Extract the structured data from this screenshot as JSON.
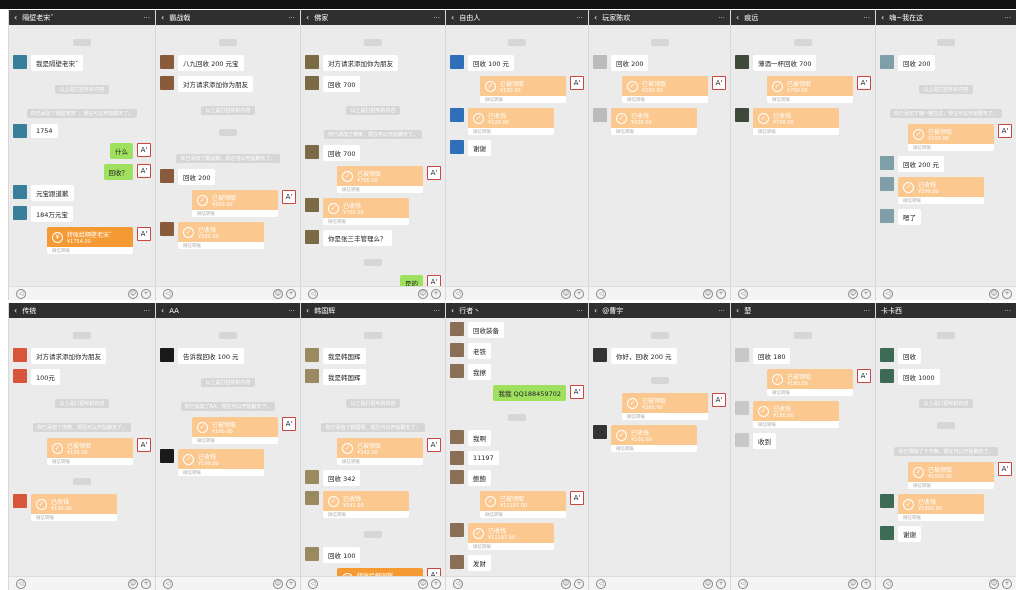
{
  "common": {
    "back_icon": "‹",
    "more": "···",
    "received_label": "已收钱",
    "claimed_label": "已被领取",
    "footer_label": "微信转账",
    "self_avatar": "A'"
  },
  "colors": {
    "header": "#2f2f2f",
    "bubble_out": "#9fe05f",
    "transfer_done": "#fbc88f",
    "transfer_pending": "#f59a32"
  },
  "panels": [
    {
      "title": "隔壁老宋ˇ",
      "avatar_color": "#3a7f9a",
      "messages": [
        {
          "type": "time"
        },
        {
          "type": "in",
          "text": "我是隔壁老宋ˇ"
        },
        {
          "type": "sys",
          "text": "以上是打招呼的内容"
        },
        {
          "type": "sys",
          "text": "你已添加了隔壁老宋ˇ，现在可以开始聊天了。"
        },
        {
          "type": "in",
          "text": "1754"
        },
        {
          "type": "out",
          "text": "什么"
        },
        {
          "type": "out",
          "text": "回收？"
        },
        {
          "type": "in",
          "text": "元宝跟道歉"
        },
        {
          "type": "in",
          "text": "184万元宝"
        },
        {
          "type": "out-pending",
          "label": "转账给隔壁老宋ˇ",
          "amount": "¥1754.00"
        }
      ]
    },
    {
      "title": "霸战戟",
      "avatar_color": "#8a5a3c",
      "messages": [
        {
          "type": "time"
        },
        {
          "type": "in",
          "text": "八九回收 200 元宝"
        },
        {
          "type": "in",
          "text": "对方请求添加你为朋友"
        },
        {
          "type": "sys",
          "text": "以上是打招呼的内容"
        },
        {
          "type": "time"
        },
        {
          "type": "sys",
          "text": "你已添加了霸战戟，现在可以开始聊天了。"
        },
        {
          "type": "in",
          "text": "回收 200"
        },
        {
          "type": "out-done",
          "amount": "¥200.00"
        },
        {
          "type": "in-done",
          "amount": "¥200.00"
        }
      ]
    },
    {
      "title": "佛家",
      "avatar_color": "#7a6a45",
      "messages": [
        {
          "type": "time"
        },
        {
          "type": "in",
          "text": "对方请求添加你为朋友"
        },
        {
          "type": "in",
          "text": "回收 700"
        },
        {
          "type": "sys",
          "text": "以上是打招呼的内容"
        },
        {
          "type": "sys",
          "text": "你已添加了佛家，现在可以开始聊天了。"
        },
        {
          "type": "in",
          "text": "回收 700"
        },
        {
          "type": "out-done",
          "amount": "¥700.00"
        },
        {
          "type": "in-done",
          "amount": "¥700.00"
        },
        {
          "type": "in",
          "text": "你是张三丰管理么？"
        },
        {
          "type": "time"
        },
        {
          "type": "out",
          "text": "是的"
        }
      ]
    },
    {
      "title": "自由人",
      "avatar_color": "#2f6fb8",
      "messages": [
        {
          "type": "time"
        },
        {
          "type": "in",
          "text": "回收 100 元"
        },
        {
          "type": "out-done",
          "amount": "¥100.00"
        },
        {
          "type": "in-done",
          "amount": "¥100.00"
        },
        {
          "type": "in",
          "text": "谢谢"
        }
      ]
    },
    {
      "title": "玩家陈欢",
      "avatar_color": "#bbbbbb",
      "messages": [
        {
          "type": "time"
        },
        {
          "type": "in",
          "text": "回收 200"
        },
        {
          "type": "out-done",
          "amount": "¥200.00"
        },
        {
          "type": "in-done",
          "amount": "¥200.00"
        }
      ]
    },
    {
      "title": "痕远",
      "avatar_color": "#3d4a3a",
      "messages": [
        {
          "type": "time"
        },
        {
          "type": "in",
          "text": "薄酒一杯回收 700"
        },
        {
          "type": "out-done",
          "amount": "¥700.00"
        },
        {
          "type": "in-done",
          "amount": "¥700.00"
        }
      ]
    },
    {
      "title": "嗨~我在这",
      "avatar_color": "#7f9fa8",
      "messages": [
        {
          "type": "time"
        },
        {
          "type": "in",
          "text": "回收 200"
        },
        {
          "type": "sys",
          "text": "以上是打招呼的内容"
        },
        {
          "type": "sys",
          "text": "你已添加了嗨~我在这，现在可以开始聊天了。"
        },
        {
          "type": "out-done",
          "amount": "¥200.00"
        },
        {
          "type": "in",
          "text": "回收 200 元"
        },
        {
          "type": "in-done",
          "amount": "¥200.00"
        },
        {
          "type": "in",
          "text": "嗯了"
        }
      ]
    },
    {
      "title": "传统",
      "avatar_color": "#d9553a",
      "messages": [
        {
          "type": "time"
        },
        {
          "type": "in",
          "text": "对方请求添加你为朋友"
        },
        {
          "type": "in",
          "text": "100元"
        },
        {
          "type": "sys",
          "text": "以上是打招呼的内容"
        },
        {
          "type": "sys",
          "text": "你已添加了传统，现在可以开始聊天了。"
        },
        {
          "type": "out-done",
          "amount": "¥100.00"
        },
        {
          "type": "time"
        },
        {
          "type": "in-done",
          "amount": "¥100.00"
        }
      ]
    },
    {
      "title": "AA",
      "avatar_color": "#1a1a1a",
      "messages": [
        {
          "type": "time"
        },
        {
          "type": "in",
          "text": "告诉我回收 100 元"
        },
        {
          "type": "sys",
          "text": "以上是打招呼的内容"
        },
        {
          "type": "sys",
          "text": "你已添加了AA，现在可以开始聊天了。"
        },
        {
          "type": "out-done",
          "amount": "¥100.00"
        },
        {
          "type": "in-done",
          "amount": "¥100.00"
        }
      ]
    },
    {
      "title": "韩国辉",
      "avatar_color": "#9a8a60",
      "messages": [
        {
          "type": "time"
        },
        {
          "type": "in",
          "text": "我是韩国辉"
        },
        {
          "type": "in",
          "text": "我是韩国辉"
        },
        {
          "type": "sys",
          "text": "以上是打招呼的内容"
        },
        {
          "type": "sys",
          "text": "你已添加了韩国辉，现在可以开始聊天了。"
        },
        {
          "type": "out-done",
          "amount": "¥342.00"
        },
        {
          "type": "in",
          "text": "回收 342"
        },
        {
          "type": "in-done",
          "amount": "¥342.00"
        },
        {
          "type": "time"
        },
        {
          "type": "in",
          "text": "回收 100"
        },
        {
          "type": "out-pending",
          "label": "转账给韩国辉",
          "amount": "¥100.00"
        }
      ]
    },
    {
      "title": "行者丶",
      "avatar_color": "#8a6e55",
      "messages": [
        {
          "type": "in",
          "text": "回收装备"
        },
        {
          "type": "in",
          "text": "老铁"
        },
        {
          "type": "in",
          "text": "我擦"
        },
        {
          "type": "out",
          "text": "我我 QQ188459702"
        },
        {
          "type": "time"
        },
        {
          "type": "in",
          "text": "我啊"
        },
        {
          "type": "in",
          "text": "11197"
        },
        {
          "type": "in",
          "text": "鲍鲍"
        },
        {
          "type": "out-done",
          "amount": "¥11197.00"
        },
        {
          "type": "in-done",
          "amount": "¥11197.00"
        },
        {
          "type": "in",
          "text": "发财"
        }
      ]
    },
    {
      "title": "@曹宇",
      "avatar_color": "#333333",
      "messages": [
        {
          "type": "time"
        },
        {
          "type": "in",
          "text": "你好，回收 200 元"
        },
        {
          "type": "time"
        },
        {
          "type": "out-done",
          "amount": "¥200.00"
        },
        {
          "type": "in-done",
          "amount": "¥200.00"
        }
      ]
    },
    {
      "title": "楚",
      "avatar_color": "#c8c8c8",
      "messages": [
        {
          "type": "time"
        },
        {
          "type": "in",
          "text": "回收 180"
        },
        {
          "type": "out-done",
          "amount": "¥180.00"
        },
        {
          "type": "in-done",
          "amount": "¥180.00"
        },
        {
          "type": "in",
          "text": "收到"
        }
      ]
    },
    {
      "title": "卡卡西",
      "no_back": true,
      "avatar_color": "#3c6a55",
      "messages": [
        {
          "type": "time"
        },
        {
          "type": "in",
          "text": "回收"
        },
        {
          "type": "in",
          "text": "回收 1000"
        },
        {
          "type": "sys",
          "text": "以上是打招呼的内容"
        },
        {
          "type": "time"
        },
        {
          "type": "sys",
          "text": "你已添加了卡卡西，现在可以开始聊天了。"
        },
        {
          "type": "out-done",
          "amount": "¥1000.00"
        },
        {
          "type": "in-done",
          "amount": "¥1000.00"
        },
        {
          "type": "in",
          "text": "谢谢"
        }
      ]
    }
  ]
}
